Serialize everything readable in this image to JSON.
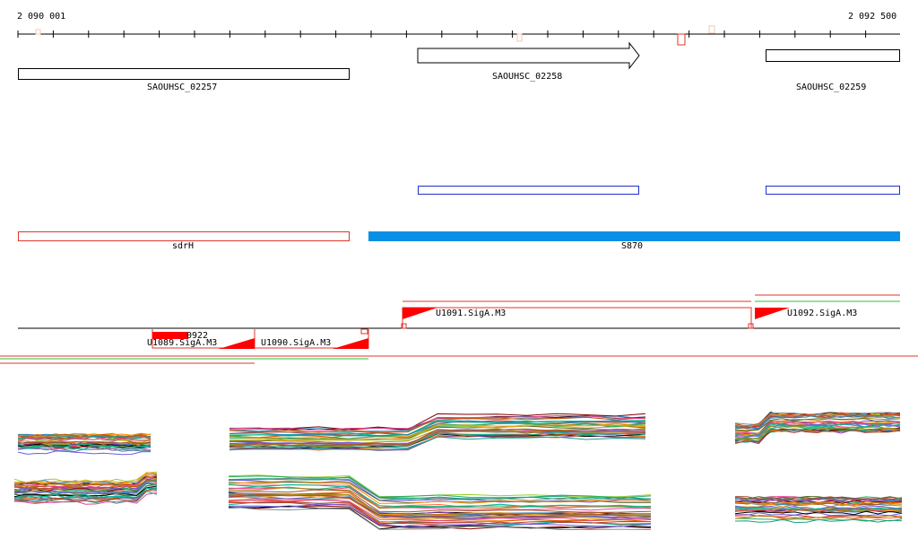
{
  "ruler": {
    "start_label": "2 090 001",
    "end_label": "2 092 500"
  },
  "genes": [
    {
      "name": "SAOUHSC_02257"
    },
    {
      "name": "SAOUHSC_02258"
    },
    {
      "name": "SAOUHSC_02259"
    }
  ],
  "features": [
    {
      "name": "sdrH"
    },
    {
      "name": "S870"
    }
  ],
  "promoters": [
    {
      "name": "U1089.SigA.M3"
    },
    {
      "name": "U1090.SigA.M3"
    },
    {
      "name": "U1091.SigA.M3"
    },
    {
      "name": "U1092.SigA.M3"
    }
  ],
  "small_label": "0922",
  "colors": {
    "accent_blue": "#0a8fe6",
    "box_blue": "#1f2fd0",
    "promoter_red": "#ff0000",
    "feature_red": "#e0352b",
    "green_line": "#2fbf3a"
  }
}
